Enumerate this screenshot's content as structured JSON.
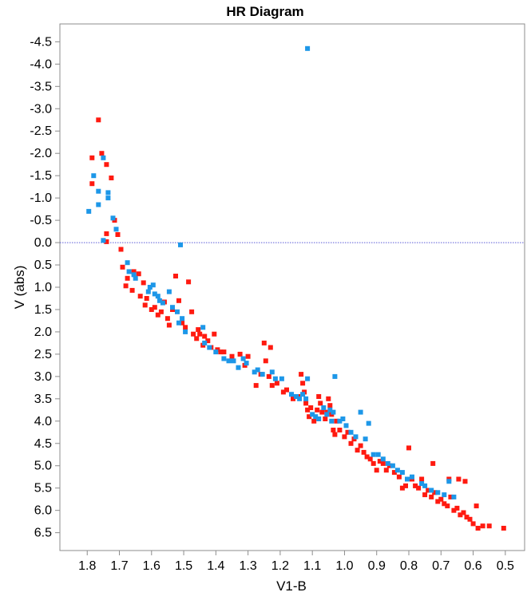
{
  "chart_data": {
    "type": "scatter",
    "title": "HR Diagram",
    "xlabel": "V1-B",
    "ylabel": "V (abs)",
    "xlim": [
      1.885,
      0.44
    ],
    "ylim": [
      -4.9,
      6.9
    ],
    "x_reversed": true,
    "y_reversed": true,
    "xticks": [
      1.8,
      1.7,
      1.6,
      1.5,
      1.4,
      1.3,
      1.2,
      1.1,
      1.0,
      0.9,
      0.8,
      0.7,
      0.6,
      0.5
    ],
    "xtick_labels": [
      "1.8",
      "1.7",
      "1.6",
      "1.5",
      "1.4",
      "1.3",
      "1.2",
      "1.1",
      "1.0",
      "0.9",
      "0.8",
      "0.7",
      "0.6",
      "0.5"
    ],
    "yticks": [
      -4.5,
      -4.0,
      -3.5,
      -3.0,
      -2.5,
      -2.0,
      -1.5,
      -1.0,
      -0.5,
      0.0,
      0.5,
      1.0,
      1.5,
      2.0,
      2.5,
      3.0,
      3.5,
      4.0,
      4.5,
      5.0,
      5.5,
      6.0,
      6.5
    ],
    "ytick_labels": [
      "-4.5",
      "-4.0",
      "-3.5",
      "-3.0",
      "-2.5",
      "-2.0",
      "-1.5",
      "-1.0",
      "-0.5",
      "0.0",
      "0.5",
      "1.0",
      "1.5",
      "2.0",
      "2.5",
      "3.0",
      "3.5",
      "4.0",
      "4.5",
      "5.0",
      "5.5",
      "6.0",
      "6.5"
    ],
    "grid": false,
    "reference_line": {
      "y": 0.0,
      "color": "#5b5bd6",
      "style": "dotted"
    },
    "series": [
      {
        "color": "#ff1a10",
        "points": [
          [
            1.765,
            -2.75
          ],
          [
            1.785,
            -1.9
          ],
          [
            1.755,
            -2.0
          ],
          [
            1.74,
            -1.75
          ],
          [
            1.725,
            -1.45
          ],
          [
            1.785,
            -1.32
          ],
          [
            1.715,
            -0.5
          ],
          [
            1.74,
            -0.2
          ],
          [
            1.705,
            -0.18
          ],
          [
            1.74,
            -0.02
          ],
          [
            1.695,
            0.15
          ],
          [
            1.69,
            0.55
          ],
          [
            1.675,
            0.8
          ],
          [
            1.68,
            0.97
          ],
          [
            1.655,
            0.65
          ],
          [
            1.66,
            1.07
          ],
          [
            1.64,
            0.7
          ],
          [
            1.635,
            1.2
          ],
          [
            1.625,
            0.9
          ],
          [
            1.62,
            1.4
          ],
          [
            1.615,
            1.25
          ],
          [
            1.6,
            1.5
          ],
          [
            1.59,
            1.45
          ],
          [
            1.58,
            1.62
          ],
          [
            1.57,
            1.55
          ],
          [
            1.56,
            1.33
          ],
          [
            1.55,
            1.7
          ],
          [
            1.545,
            1.85
          ],
          [
            1.535,
            1.5
          ],
          [
            1.525,
            0.75
          ],
          [
            1.515,
            1.3
          ],
          [
            1.505,
            1.8
          ],
          [
            1.495,
            1.9
          ],
          [
            1.485,
            0.88
          ],
          [
            1.475,
            1.55
          ],
          [
            1.47,
            2.05
          ],
          [
            1.46,
            2.15
          ],
          [
            1.455,
            1.95
          ],
          [
            1.45,
            2.05
          ],
          [
            1.44,
            2.3
          ],
          [
            1.435,
            2.1
          ],
          [
            1.425,
            2.2
          ],
          [
            1.415,
            2.35
          ],
          [
            1.405,
            2.05
          ],
          [
            1.395,
            2.4
          ],
          [
            1.385,
            2.45
          ],
          [
            1.375,
            2.45
          ],
          [
            1.35,
            2.55
          ],
          [
            1.325,
            2.5
          ],
          [
            1.31,
            2.75
          ],
          [
            1.3,
            2.55
          ],
          [
            1.275,
            3.2
          ],
          [
            1.26,
            2.95
          ],
          [
            1.25,
            2.25
          ],
          [
            1.245,
            2.65
          ],
          [
            1.235,
            3.0
          ],
          [
            1.23,
            2.35
          ],
          [
            1.225,
            3.2
          ],
          [
            1.21,
            3.15
          ],
          [
            1.19,
            3.35
          ],
          [
            1.18,
            3.3
          ],
          [
            1.16,
            3.5
          ],
          [
            1.145,
            3.45
          ],
          [
            1.135,
            2.95
          ],
          [
            1.13,
            3.15
          ],
          [
            1.125,
            3.35
          ],
          [
            1.12,
            3.6
          ],
          [
            1.115,
            3.75
          ],
          [
            1.11,
            3.9
          ],
          [
            1.105,
            3.7
          ],
          [
            1.095,
            4.0
          ],
          [
            1.085,
            3.75
          ],
          [
            1.08,
            3.45
          ],
          [
            1.075,
            3.6
          ],
          [
            1.07,
            3.8
          ],
          [
            1.06,
            3.95
          ],
          [
            1.055,
            3.8
          ],
          [
            1.05,
            3.5
          ],
          [
            1.045,
            3.65
          ],
          [
            1.04,
            3.85
          ],
          [
            1.035,
            4.2
          ],
          [
            1.03,
            4.3
          ],
          [
            1.025,
            4.0
          ],
          [
            1.015,
            4.2
          ],
          [
            1.0,
            4.35
          ],
          [
            0.99,
            4.25
          ],
          [
            0.98,
            4.5
          ],
          [
            0.97,
            4.4
          ],
          [
            0.96,
            4.65
          ],
          [
            0.95,
            4.55
          ],
          [
            0.94,
            4.7
          ],
          [
            0.93,
            4.8
          ],
          [
            0.92,
            4.85
          ],
          [
            0.91,
            4.95
          ],
          [
            0.9,
            5.1
          ],
          [
            0.89,
            4.9
          ],
          [
            0.88,
            4.95
          ],
          [
            0.87,
            5.1
          ],
          [
            0.86,
            5.0
          ],
          [
            0.845,
            5.15
          ],
          [
            0.83,
            5.25
          ],
          [
            0.82,
            5.5
          ],
          [
            0.81,
            5.45
          ],
          [
            0.8,
            4.6
          ],
          [
            0.79,
            5.3
          ],
          [
            0.78,
            5.45
          ],
          [
            0.77,
            5.5
          ],
          [
            0.76,
            5.3
          ],
          [
            0.75,
            5.65
          ],
          [
            0.74,
            5.55
          ],
          [
            0.73,
            5.7
          ],
          [
            0.725,
            4.95
          ],
          [
            0.72,
            5.6
          ],
          [
            0.71,
            5.8
          ],
          [
            0.7,
            5.75
          ],
          [
            0.69,
            5.85
          ],
          [
            0.68,
            5.9
          ],
          [
            0.675,
            5.3
          ],
          [
            0.67,
            5.7
          ],
          [
            0.66,
            6.0
          ],
          [
            0.65,
            5.95
          ],
          [
            0.645,
            5.3
          ],
          [
            0.64,
            6.1
          ],
          [
            0.63,
            6.05
          ],
          [
            0.625,
            5.35
          ],
          [
            0.62,
            6.15
          ],
          [
            0.61,
            6.2
          ],
          [
            0.6,
            6.3
          ],
          [
            0.59,
            5.9
          ],
          [
            0.585,
            6.4
          ],
          [
            0.57,
            6.35
          ],
          [
            0.55,
            6.35
          ],
          [
            0.505,
            6.4
          ]
        ]
      },
      {
        "color": "#1d97e8",
        "points": [
          [
            1.115,
            -4.35
          ],
          [
            1.75,
            -1.9
          ],
          [
            1.78,
            -1.5
          ],
          [
            1.765,
            -1.15
          ],
          [
            1.735,
            -1.12
          ],
          [
            1.735,
            -1.0
          ],
          [
            1.765,
            -0.85
          ],
          [
            1.795,
            -0.7
          ],
          [
            1.72,
            -0.55
          ],
          [
            1.71,
            -0.3
          ],
          [
            1.75,
            -0.05
          ],
          [
            1.51,
            0.05
          ],
          [
            1.675,
            0.45
          ],
          [
            1.67,
            0.65
          ],
          [
            1.655,
            0.72
          ],
          [
            1.65,
            0.8
          ],
          [
            1.61,
            1.1
          ],
          [
            1.605,
            1.0
          ],
          [
            1.595,
            0.95
          ],
          [
            1.59,
            1.15
          ],
          [
            1.58,
            1.2
          ],
          [
            1.575,
            1.3
          ],
          [
            1.565,
            1.35
          ],
          [
            1.545,
            1.1
          ],
          [
            1.535,
            1.45
          ],
          [
            1.52,
            1.55
          ],
          [
            1.515,
            1.8
          ],
          [
            1.505,
            1.7
          ],
          [
            1.495,
            2.0
          ],
          [
            1.44,
            1.9
          ],
          [
            1.435,
            2.25
          ],
          [
            1.42,
            2.35
          ],
          [
            1.4,
            2.45
          ],
          [
            1.375,
            2.6
          ],
          [
            1.36,
            2.65
          ],
          [
            1.345,
            2.65
          ],
          [
            1.33,
            2.8
          ],
          [
            1.315,
            2.6
          ],
          [
            1.305,
            2.7
          ],
          [
            1.28,
            2.9
          ],
          [
            1.27,
            2.85
          ],
          [
            1.255,
            2.95
          ],
          [
            1.225,
            2.9
          ],
          [
            1.215,
            3.05
          ],
          [
            1.195,
            3.05
          ],
          [
            1.165,
            3.4
          ],
          [
            1.15,
            3.45
          ],
          [
            1.14,
            3.5
          ],
          [
            1.13,
            3.4
          ],
          [
            1.12,
            3.5
          ],
          [
            1.115,
            3.05
          ],
          [
            1.1,
            3.85
          ],
          [
            1.09,
            3.9
          ],
          [
            1.08,
            3.95
          ],
          [
            1.065,
            3.7
          ],
          [
            1.055,
            3.85
          ],
          [
            1.045,
            3.75
          ],
          [
            1.04,
            4.0
          ],
          [
            1.035,
            3.8
          ],
          [
            1.03,
            3.0
          ],
          [
            1.015,
            4.0
          ],
          [
            1.005,
            3.95
          ],
          [
            0.995,
            4.1
          ],
          [
            0.98,
            4.25
          ],
          [
            0.965,
            4.35
          ],
          [
            0.95,
            3.8
          ],
          [
            0.935,
            4.4
          ],
          [
            0.925,
            4.05
          ],
          [
            0.91,
            4.75
          ],
          [
            0.895,
            4.75
          ],
          [
            0.88,
            4.85
          ],
          [
            0.865,
            4.95
          ],
          [
            0.85,
            5.0
          ],
          [
            0.835,
            5.1
          ],
          [
            0.82,
            5.15
          ],
          [
            0.805,
            5.3
          ],
          [
            0.79,
            5.25
          ],
          [
            0.76,
            5.4
          ],
          [
            0.75,
            5.45
          ],
          [
            0.73,
            5.55
          ],
          [
            0.71,
            5.6
          ],
          [
            0.69,
            5.65
          ],
          [
            0.675,
            5.35
          ],
          [
            0.66,
            5.7
          ]
        ]
      }
    ]
  }
}
